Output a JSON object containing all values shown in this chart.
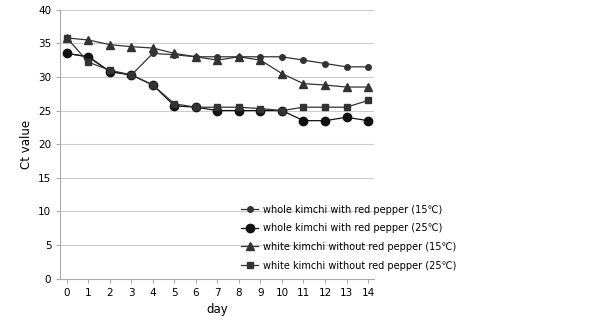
{
  "days": [
    0,
    1,
    2,
    3,
    4,
    5,
    6,
    7,
    8,
    9,
    10,
    11,
    12,
    13,
    14
  ],
  "series": [
    {
      "label": "whole kimchi with red pepper (15℃)",
      "marker": "o",
      "markersize": 4,
      "color": "#333333",
      "linewidth": 0.9,
      "values": [
        33.5,
        33.0,
        30.8,
        30.3,
        33.5,
        33.3,
        33.0,
        33.0,
        33.0,
        33.0,
        33.0,
        32.5,
        32.0,
        31.5,
        31.5
      ]
    },
    {
      "label": "whole kimchi with red pepper (25℃)",
      "marker": "o",
      "markersize": 6,
      "color": "#111111",
      "linewidth": 0.9,
      "values": [
        33.5,
        33.0,
        30.8,
        30.3,
        28.8,
        25.7,
        25.5,
        25.0,
        25.0,
        25.0,
        25.0,
        23.5,
        23.5,
        24.0,
        23.5
      ]
    },
    {
      "label": "white kimchi without red pepper (15℃)",
      "marker": "^",
      "markersize": 6,
      "color": "#333333",
      "linewidth": 0.9,
      "values": [
        35.8,
        35.5,
        34.8,
        34.5,
        34.3,
        33.5,
        33.0,
        32.5,
        33.0,
        32.5,
        30.5,
        29.0,
        28.8,
        28.5,
        28.5
      ]
    },
    {
      "label": "white kimchi without red pepper (25℃)",
      "marker": "s",
      "markersize": 5,
      "color": "#333333",
      "linewidth": 0.9,
      "values": [
        35.8,
        32.2,
        31.0,
        30.3,
        28.8,
        26.0,
        25.5,
        25.5,
        25.5,
        25.3,
        25.0,
        25.5,
        25.5,
        25.5,
        26.5
      ]
    }
  ],
  "xlabel": "day",
  "ylabel": "Ct value",
  "ylim": [
    0,
    40
  ],
  "yticks": [
    0,
    5,
    10,
    15,
    20,
    25,
    30,
    35,
    40
  ],
  "xticks": [
    0,
    1,
    2,
    3,
    4,
    5,
    6,
    7,
    8,
    9,
    10,
    11,
    12,
    13,
    14
  ],
  "background_color": "#ffffff",
  "grid_color": "#cccccc",
  "legend_fontsize": 7,
  "axis_fontsize": 8.5
}
